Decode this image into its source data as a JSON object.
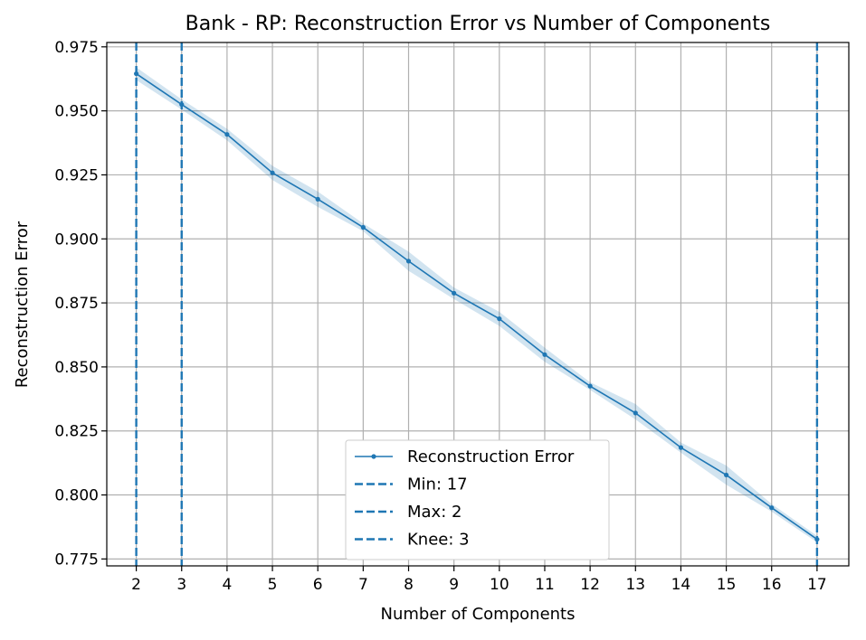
{
  "chart_data": {
    "type": "line",
    "title": "Bank - RP: Reconstruction Error vs Number of Components",
    "xlabel": "Number of Components",
    "ylabel": "Reconstruction Error",
    "x": [
      2,
      3,
      4,
      5,
      6,
      7,
      8,
      9,
      10,
      11,
      12,
      13,
      14,
      15,
      16,
      17
    ],
    "xlim": [
      1.35,
      17.7
    ],
    "ylim": [
      0.7723,
      0.9767
    ],
    "yticks": [
      0.775,
      0.8,
      0.825,
      0.85,
      0.875,
      0.9,
      0.925,
      0.95,
      0.975
    ],
    "ytick_labels": [
      "0.775",
      "0.800",
      "0.825",
      "0.850",
      "0.875",
      "0.900",
      "0.925",
      "0.950",
      "0.975"
    ],
    "grid": true,
    "series": [
      {
        "name": "Reconstruction Error",
        "color": "#1f77b4",
        "marker": "point",
        "values": [
          0.9645,
          0.9525,
          0.9408,
          0.9258,
          0.9155,
          0.9045,
          0.8913,
          0.8788,
          0.8688,
          0.8548,
          0.8425,
          0.832,
          0.8185,
          0.8078,
          0.795,
          0.7827
        ],
        "band_lower": [
          0.962,
          0.9505,
          0.9385,
          0.923,
          0.9125,
          0.903,
          0.8875,
          0.8765,
          0.866,
          0.852,
          0.841,
          0.8295,
          0.8165,
          0.804,
          0.7935,
          0.7815
        ],
        "band_upper": [
          0.967,
          0.9545,
          0.943,
          0.9285,
          0.9185,
          0.906,
          0.895,
          0.881,
          0.8715,
          0.8575,
          0.844,
          0.8355,
          0.8205,
          0.8115,
          0.7965,
          0.784
        ],
        "band_color": "#1f77b4"
      }
    ],
    "vlines": [
      {
        "name": "Min: 17",
        "x": 17,
        "color": "#1f77b4",
        "style": "dashed"
      },
      {
        "name": "Max: 2",
        "x": 2,
        "color": "#1f77b4",
        "style": "dashed"
      },
      {
        "name": "Knee: 3",
        "x": 3,
        "color": "#1f77b4",
        "style": "dashed"
      }
    ],
    "legend_position": "lower-center"
  }
}
